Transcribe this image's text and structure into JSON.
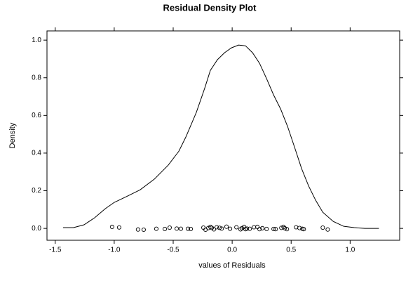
{
  "chart_data": {
    "type": "line",
    "title": "Residual Density Plot",
    "xlabel": "values of Residuals",
    "ylabel": "Density",
    "xlim": [
      -1.57,
      1.42
    ],
    "ylim": [
      -0.063,
      1.049
    ],
    "xticks": [
      -1.5,
      {
        "value": -1,
        "label": "-1.0"
      },
      -0.5,
      {
        "value": 0,
        "label": "0.0"
      },
      0.5,
      {
        "value": 1,
        "label": "1.0"
      }
    ],
    "yticks": [
      {
        "value": 0,
        "label": "0.0"
      },
      0.2,
      0.4,
      0.6,
      0.8,
      {
        "value": 1,
        "label": "1.0"
      }
    ],
    "series": [
      {
        "type": "line",
        "color": "#000000",
        "x": [
          -1.434,
          -1.345,
          -1.256,
          -1.167,
          -1.077,
          -1.0,
          -0.899,
          -0.78,
          -0.661,
          -0.542,
          -0.452,
          -0.393,
          -0.304,
          -0.232,
          -0.185,
          -0.125,
          -0.065,
          -0.006,
          0.054,
          0.113,
          0.173,
          0.232,
          0.292,
          0.351,
          0.411,
          0.47,
          0.53,
          0.589,
          0.649,
          0.708,
          0.768,
          0.857,
          0.946,
          1.036,
          1.125,
          1.244
        ],
        "values": [
          0.004,
          0.004,
          0.019,
          0.056,
          0.104,
          0.138,
          0.168,
          0.205,
          0.261,
          0.336,
          0.41,
          0.485,
          0.616,
          0.746,
          0.839,
          0.896,
          0.933,
          0.959,
          0.974,
          0.97,
          0.933,
          0.877,
          0.795,
          0.709,
          0.634,
          0.541,
          0.429,
          0.317,
          0.224,
          0.149,
          0.086,
          0.037,
          0.011,
          0.004,
          0,
          0
        ]
      },
      {
        "type": "scatter",
        "color": "#000000",
        "x": [
          -1.018,
          -0.958,
          -0.798,
          -0.75,
          -0.643,
          -0.571,
          -0.53,
          -0.47,
          -0.435,
          -0.375,
          -0.351,
          -0.244,
          -0.226,
          -0.202,
          -0.185,
          -0.173,
          -0.155,
          -0.131,
          -0.107,
          -0.089,
          -0.048,
          -0.018,
          0.036,
          0.071,
          0.083,
          0.101,
          0.113,
          0.125,
          0.149,
          0.185,
          0.214,
          0.232,
          0.256,
          0.292,
          0.351,
          0.369,
          0.417,
          0.435,
          0.446,
          0.464,
          0.542,
          0.571,
          0.595,
          0.607,
          0.768,
          0.81
        ],
        "values": [
          0.008,
          0.005,
          -0.006,
          -0.007,
          -0.002,
          -0.003,
          0.004,
          -0.001,
          -0.002,
          -0.002,
          -0.003,
          0.004,
          -0.007,
          0.002,
          0.008,
          0.003,
          -0.005,
          0.006,
          0.003,
          -0.001,
          0.009,
          -0.002,
          0.006,
          -0.005,
          0.001,
          0.008,
          -0.004,
          -0.001,
          -0.002,
          0.006,
          0.008,
          -0.004,
          0.001,
          -0.003,
          -0.003,
          -0.004,
          0.003,
          0.008,
          0.001,
          -0.004,
          0.006,
          0.002,
          -0.002,
          -0.004,
          0.004,
          -0.006
        ]
      }
    ]
  }
}
